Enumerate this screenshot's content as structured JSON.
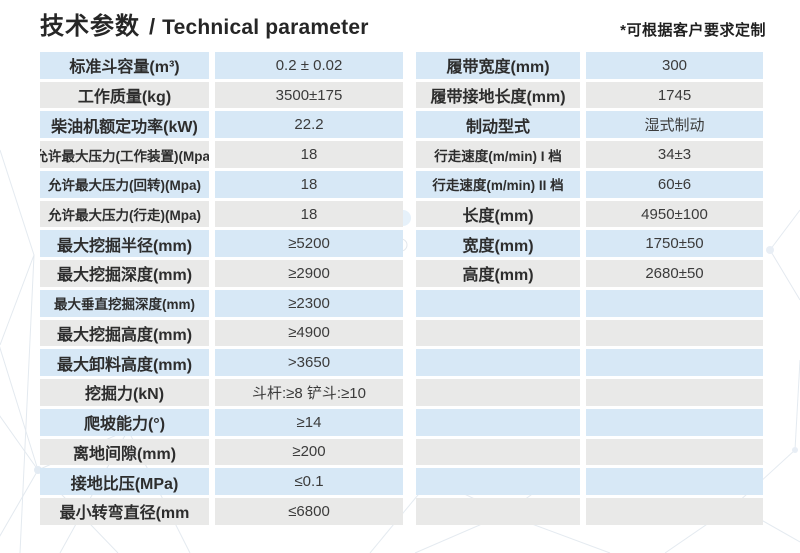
{
  "header": {
    "title_zh": "技术参数",
    "title_sep": "/",
    "title_en": "Technical parameter",
    "note": "*可根据客户要求定制"
  },
  "colors": {
    "row_blue": "#d7e8f6",
    "row_gray": "#e9e9e8",
    "text": "#2d2d2d"
  },
  "tables": {
    "left": {
      "rows": [
        {
          "label": "标准斗容量(m³)",
          "value": "0.2 ± 0.02"
        },
        {
          "label": "工作质量(kg)",
          "value": "3500±175"
        },
        {
          "label": "柴油机额定功率(kW)",
          "value": "22.2"
        },
        {
          "label": "允许最大压力(工作装置)(Mpa)",
          "value": "18"
        },
        {
          "label": "允许最大压力(回转)(Mpa)",
          "value": "18"
        },
        {
          "label": "允许最大压力(行走)(Mpa)",
          "value": "18"
        },
        {
          "label": "最大挖掘半径(mm)",
          "value": "≥5200"
        },
        {
          "label": "最大挖掘深度(mm)",
          "value": "≥2900"
        },
        {
          "label": "最大垂直挖掘深度(mm)",
          "value": "≥2300"
        },
        {
          "label": "最大挖掘高度(mm)",
          "value": "≥4900"
        },
        {
          "label": "最大卸料高度(mm)",
          "value": ">3650"
        },
        {
          "label": "挖掘力(kN)",
          "value": "斗杆:≥8 铲斗:≥10"
        },
        {
          "label": "爬坡能力(°)",
          "value": "≥14"
        },
        {
          "label": "离地间隙(mm)",
          "value": "≥200"
        },
        {
          "label": "接地比压(MPa)",
          "value": "≤0.1"
        },
        {
          "label": "最小转弯直径(mm",
          "value": "≤6800"
        }
      ]
    },
    "right": {
      "rows": [
        {
          "label": "履带宽度(mm)",
          "value": "300"
        },
        {
          "label": "履带接地长度(mm)",
          "value": "1745"
        },
        {
          "label": "制动型式",
          "value": "湿式制动"
        },
        {
          "label": "行走速度(m/min) I 档",
          "value": "34±3"
        },
        {
          "label": "行走速度(m/min) II 档",
          "value": "60±6"
        },
        {
          "label": "长度(mm)",
          "value": "4950±100"
        },
        {
          "label": "宽度(mm)",
          "value": "1750±50"
        },
        {
          "label": "高度(mm)",
          "value": "2680±50"
        },
        {
          "label": "",
          "value": ""
        },
        {
          "label": "",
          "value": ""
        },
        {
          "label": "",
          "value": ""
        },
        {
          "label": "",
          "value": ""
        },
        {
          "label": "",
          "value": ""
        },
        {
          "label": "",
          "value": ""
        },
        {
          "label": "",
          "value": ""
        },
        {
          "label": "",
          "value": ""
        }
      ]
    }
  }
}
